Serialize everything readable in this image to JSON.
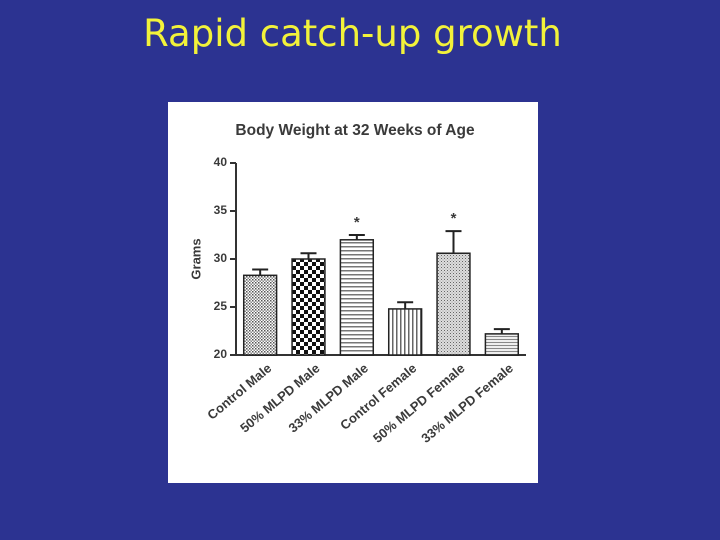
{
  "slide_title": "Rapid catch-up growth",
  "chart_data": {
    "type": "bar",
    "title": "Body Weight at 32 Weeks of Age",
    "y_label": "Grams",
    "categories": [
      "Control Male",
      "50% MLPD Male",
      "33% MLPD Male",
      "Control Female",
      "50% MLPD Female",
      "33% MLPD Female"
    ],
    "values": [
      28.3,
      30.0,
      32.0,
      24.8,
      30.6,
      22.2
    ],
    "errors": [
      0.6,
      0.6,
      0.5,
      0.7,
      2.3,
      0.5
    ],
    "significance": [
      null,
      null,
      "*",
      null,
      "*",
      null
    ],
    "ylim": [
      20,
      40
    ],
    "yticks": [
      20,
      25,
      30,
      35,
      40
    ],
    "grid": false
  }
}
